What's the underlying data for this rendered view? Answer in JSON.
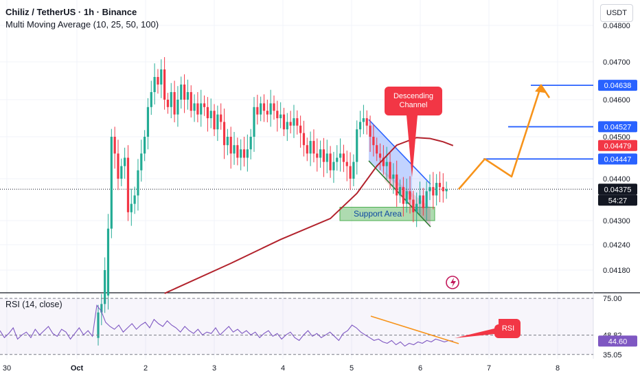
{
  "header": {
    "title": "Chiliz / TetherUS · 1h · Binance",
    "indicator": "Multi Moving Average (10, 25, 50, 100)",
    "currency_button": "USDT",
    "rsi_title": "RSI (14, close)"
  },
  "annotations": {
    "channel_callout": [
      "Descending",
      "Channel"
    ],
    "support_label": "Support Area",
    "rsi_callout": "RSI",
    "countdown": "54:27"
  },
  "colors": {
    "up": "#22ab94",
    "down": "#f23645",
    "ma": "#b2222c",
    "target_lines": "#2962ff",
    "projection": "#f7931a",
    "channel_line": "#2962ff",
    "channel_bottom": "#2e7d32",
    "support_fill": "#4caf50",
    "callout": "#f23645",
    "rsi_line": "#7e57c2"
  },
  "chart_data": [
    {
      "type": "candlestick",
      "title": "Chiliz / TetherUS · 1h · Binance",
      "x_labels": [
        "30",
        "Oct",
        "2",
        "3",
        "4",
        "5",
        "6",
        "7",
        "8"
      ],
      "y_ticks": [
        0.0418,
        0.0424,
        0.043,
        0.044,
        0.045,
        0.046,
        0.047,
        0.048
      ],
      "y_tick_labels": [
        "0.04180",
        "0.04240",
        "0.04300",
        "0.04400",
        "0.04500",
        "0.04600",
        "0.04700",
        "0.04800"
      ],
      "ylim": [
        0.04125,
        0.04835
      ],
      "candles_close": [
        0.0408,
        0.041,
        0.0418,
        0.0428,
        0.045,
        0.0446,
        0.044,
        0.0443,
        0.0445,
        0.0432,
        0.0434,
        0.0436,
        0.0442,
        0.0446,
        0.045,
        0.0458,
        0.0462,
        0.0466,
        0.0464,
        0.0468,
        0.046,
        0.0458,
        0.0462,
        0.0456,
        0.046,
        0.0464,
        0.046,
        0.0462,
        0.0457,
        0.0459,
        0.0456,
        0.0459,
        0.0458,
        0.0455,
        0.0457,
        0.0452,
        0.0456,
        0.0454,
        0.0448,
        0.045,
        0.0446,
        0.0448,
        0.0445,
        0.0447,
        0.0445,
        0.0447,
        0.045,
        0.0458,
        0.0456,
        0.0459,
        0.0457,
        0.0456,
        0.0459,
        0.0457,
        0.0455,
        0.0456,
        0.0452,
        0.0454,
        0.0453,
        0.0455,
        0.0453,
        0.0451,
        0.0448,
        0.0446,
        0.0449,
        0.0446,
        0.0445,
        0.0447,
        0.0444,
        0.0446,
        0.0442,
        0.0444,
        0.0445,
        0.0446,
        0.0444,
        0.0443,
        0.044,
        0.0444,
        0.0452,
        0.0454,
        0.0455,
        0.0453,
        0.045,
        0.0448,
        0.0446,
        0.0445,
        0.0443,
        0.0444,
        0.044,
        0.0441,
        0.0436,
        0.0438,
        0.0434,
        0.0437,
        0.0435,
        0.0432,
        0.0434,
        0.0436,
        0.0433,
        0.0437,
        0.0438,
        0.0436,
        0.0439,
        0.0438,
        0.0437,
        0.04375
      ],
      "current_price": "0.04375",
      "moving_average": {
        "name": "MA",
        "x_index": [
          20,
          40,
          55,
          70,
          78,
          84,
          90,
          96,
          100,
          104,
          107
        ],
        "values": [
          0.04125,
          0.04196,
          0.04253,
          0.04305,
          0.04365,
          0.0443,
          0.0448,
          0.04498,
          0.04496,
          0.04488,
          0.04479
        ]
      },
      "price_tags": [
        "0.04638",
        "0.04527",
        "0.04479",
        "0.04447",
        "0.04375"
      ],
      "target_levels": [
        0.04638,
        0.04527,
        0.04447
      ],
      "support_area": [
        0.043,
        0.04332
      ],
      "projection": [
        0.04375,
        0.04447,
        0.04405,
        0.04638,
        0.04605
      ]
    },
    {
      "type": "line",
      "title": "RSI (14, close)",
      "series_name": "RSI",
      "levels": [
        "75.00",
        "48.82",
        "35.05"
      ],
      "current_value": "44.60",
      "ylim": [
        32,
        78
      ],
      "values": [
        52,
        47,
        50,
        54,
        46,
        49,
        51,
        47,
        53,
        49,
        52,
        55,
        50,
        48,
        53,
        51,
        46,
        50,
        54,
        49,
        52,
        48,
        70,
        66,
        58,
        55,
        53,
        56,
        51,
        54,
        57,
        53,
        56,
        58,
        54,
        60,
        57,
        55,
        59,
        56,
        54,
        51,
        55,
        52,
        50,
        53,
        49,
        51,
        50,
        54,
        49,
        52,
        55,
        51,
        53,
        50,
        52,
        49,
        51,
        47,
        50,
        52,
        48,
        50,
        46,
        49,
        51,
        47,
        45,
        49,
        52,
        48,
        50,
        47,
        49,
        51,
        48,
        45,
        50,
        52,
        56,
        54,
        51,
        49,
        47,
        45,
        46,
        44,
        43,
        45,
        42,
        44,
        41,
        43,
        42,
        44,
        43,
        45,
        44,
        46,
        45,
        44,
        45,
        44.6
      ]
    }
  ]
}
